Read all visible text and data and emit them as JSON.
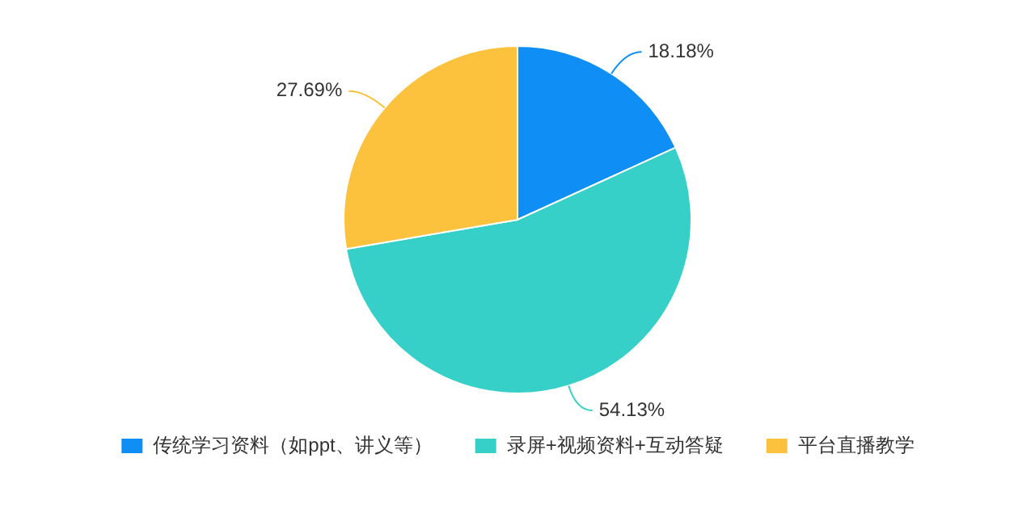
{
  "chart_data": {
    "type": "pie",
    "categories": [
      "传统学习资料（如ppt、讲义等）",
      "录屏+视频资料+互动答疑",
      "平台直播教学"
    ],
    "values": [
      18.18,
      54.13,
      27.69
    ],
    "value_labels": [
      "18.18%",
      "54.13%",
      "27.69%"
    ],
    "colors": [
      "#0f8ef6",
      "#36d0c8",
      "#fcc13d"
    ],
    "legend": "bottom"
  }
}
